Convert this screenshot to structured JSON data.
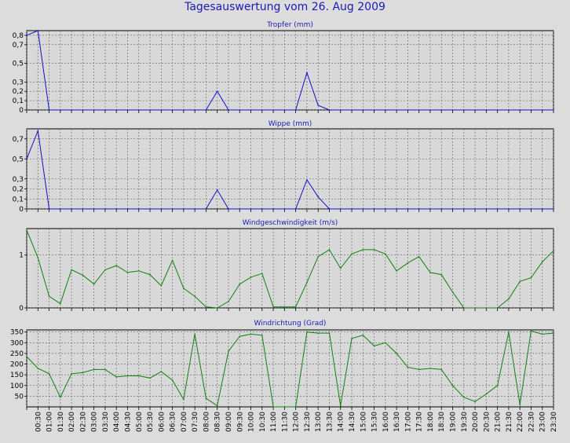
{
  "page": {
    "title": "Tagesauswertung vom 26. Aug 2009"
  },
  "colors": {
    "background": "#dcdcdc",
    "plot_area": "#d8d8d8",
    "grid": "#606060",
    "title_text": "#1a1ab4",
    "rain_series": "#1010cc",
    "wind_series": "#108010"
  },
  "x_ticks": [
    "00:30",
    "01:00",
    "01:30",
    "02:00",
    "02:30",
    "03:00",
    "03:30",
    "04:00",
    "04:30",
    "05:00",
    "05:30",
    "06:00",
    "06:30",
    "07:00",
    "07:30",
    "08:00",
    "08:30",
    "09:00",
    "09:30",
    "10:00",
    "10:30",
    "11:00",
    "11:30",
    "12:00",
    "12:30",
    "13:00",
    "13:30",
    "14:00",
    "14:30",
    "15:00",
    "15:30",
    "16:00",
    "16:30",
    "17:00",
    "17:30",
    "18:00",
    "18:30",
    "19:00",
    "19:30",
    "20:00",
    "20:30",
    "21:00",
    "21:30",
    "22:00",
    "22:30",
    "23:00",
    "23:30"
  ],
  "chart_data": [
    {
      "type": "line",
      "title": "Tropfer (mm)",
      "color": "#1010cc",
      "ylim": [
        0,
        0.85
      ],
      "yticks": [
        0,
        0.1,
        0.2,
        0.3,
        0.5,
        0.7,
        0.8
      ],
      "ytick_labels": [
        "0",
        "0,1",
        "0,2",
        "0,3",
        "0,5",
        "0,7",
        "0,8"
      ],
      "x": [
        "00:00",
        "00:30",
        "01:00",
        "01:30",
        "02:00",
        "02:30",
        "03:00",
        "03:30",
        "04:00",
        "04:30",
        "05:00",
        "05:30",
        "06:00",
        "06:30",
        "07:00",
        "07:30",
        "08:00",
        "08:30",
        "09:00",
        "09:30",
        "10:00",
        "10:30",
        "11:00",
        "11:30",
        "12:00",
        "12:30",
        "13:00",
        "13:30",
        "14:00",
        "14:30",
        "15:00",
        "15:30",
        "16:00",
        "16:30",
        "17:00",
        "17:30",
        "18:00",
        "18:30",
        "19:00",
        "19:30",
        "20:00",
        "20:30",
        "21:00",
        "21:30",
        "22:00",
        "22:30",
        "23:00",
        "23:30"
      ],
      "values": [
        0.8,
        0.85,
        0,
        0,
        0,
        0,
        0,
        0,
        0,
        0,
        0,
        0,
        0,
        0,
        0,
        0,
        0,
        0.2,
        0,
        0,
        0,
        0,
        0,
        0,
        0,
        0.4,
        0.05,
        0,
        0,
        0,
        0,
        0,
        0,
        0,
        0,
        0,
        0,
        0,
        0,
        0,
        0,
        0,
        0,
        0,
        0,
        0,
        0,
        0
      ]
    },
    {
      "type": "line",
      "title": "Wippe (mm)",
      "color": "#1010cc",
      "ylim": [
        0,
        0.8
      ],
      "yticks": [
        0,
        0.1,
        0.2,
        0.3,
        0.5,
        0.7
      ],
      "ytick_labels": [
        "0",
        "0,1",
        "0,2",
        "0,3",
        "0,5",
        "0,7"
      ],
      "x": [
        "00:00",
        "00:30",
        "01:00",
        "01:30",
        "02:00",
        "02:30",
        "03:00",
        "03:30",
        "04:00",
        "04:30",
        "05:00",
        "05:30",
        "06:00",
        "06:30",
        "07:00",
        "07:30",
        "08:00",
        "08:30",
        "09:00",
        "09:30",
        "10:00",
        "10:30",
        "11:00",
        "11:30",
        "12:00",
        "12:30",
        "13:00",
        "13:30",
        "14:00",
        "14:30",
        "15:00",
        "15:30",
        "16:00",
        "16:30",
        "17:00",
        "17:30",
        "18:00",
        "18:30",
        "19:00",
        "19:30",
        "20:00",
        "20:30",
        "21:00",
        "21:30",
        "22:00",
        "22:30",
        "23:00",
        "23:30"
      ],
      "values": [
        0.5,
        0.78,
        0,
        0,
        0,
        0,
        0,
        0,
        0,
        0,
        0,
        0,
        0,
        0,
        0,
        0,
        0,
        0.19,
        0,
        0,
        0,
        0,
        0,
        0,
        0,
        0.29,
        0.12,
        0,
        0,
        0,
        0,
        0,
        0,
        0,
        0,
        0,
        0,
        0,
        0,
        0,
        0,
        0,
        0,
        0,
        0,
        0,
        0,
        0
      ]
    },
    {
      "type": "line",
      "title": "Windgeschwindigkeit (m/s)",
      "color": "#108010",
      "ylim": [
        0,
        1.5
      ],
      "yticks": [
        0,
        1
      ],
      "ytick_labels": [
        "0",
        "1"
      ],
      "x": [
        "00:00",
        "00:30",
        "01:00",
        "01:30",
        "02:00",
        "02:30",
        "03:00",
        "03:30",
        "04:00",
        "04:30",
        "05:00",
        "05:30",
        "06:00",
        "06:30",
        "07:00",
        "07:30",
        "08:00",
        "08:30",
        "09:00",
        "09:30",
        "10:00",
        "10:30",
        "11:00",
        "11:30",
        "12:00",
        "12:30",
        "13:00",
        "13:30",
        "14:00",
        "14:30",
        "15:00",
        "15:30",
        "16:00",
        "16:30",
        "17:00",
        "17:30",
        "18:00",
        "18:30",
        "19:00",
        "19:30",
        "20:00",
        "20:30",
        "21:00",
        "21:30",
        "22:00",
        "22:30",
        "23:00",
        "23:30"
      ],
      "values": [
        1.47,
        0.95,
        0.22,
        0.08,
        0.72,
        0.62,
        0.45,
        0.72,
        0.8,
        0.67,
        0.7,
        0.63,
        0.42,
        0.9,
        0.37,
        0.22,
        0.02,
        0,
        0.12,
        0.45,
        0.58,
        0.65,
        0.02,
        0.02,
        0.02,
        0.48,
        0.97,
        1.1,
        0.75,
        1.02,
        1.1,
        1.1,
        1.02,
        0.7,
        0.85,
        0.97,
        0.67,
        0.63,
        0.3,
        0,
        0,
        0,
        0,
        0.17,
        0.5,
        0.57,
        0.87,
        1.08
      ]
    },
    {
      "type": "line",
      "title": "Windrichtung (Grad)",
      "color": "#108010",
      "ylim": [
        0,
        360
      ],
      "yticks": [
        50,
        100,
        150,
        200,
        250,
        300,
        350
      ],
      "ytick_labels": [
        "50",
        "100",
        "150",
        "200",
        "250",
        "300",
        "350"
      ],
      "x": [
        "00:00",
        "00:30",
        "01:00",
        "01:30",
        "02:00",
        "02:30",
        "03:00",
        "03:30",
        "04:00",
        "04:30",
        "05:00",
        "05:30",
        "06:00",
        "06:30",
        "07:00",
        "07:30",
        "08:00",
        "08:30",
        "09:00",
        "09:30",
        "10:00",
        "10:30",
        "11:00",
        "11:30",
        "12:00",
        "12:30",
        "13:00",
        "13:30",
        "14:00",
        "14:30",
        "15:00",
        "15:30",
        "16:00",
        "16:30",
        "17:00",
        "17:30",
        "18:00",
        "18:30",
        "19:00",
        "19:30",
        "20:00",
        "20:30",
        "21:00",
        "21:30",
        "22:00",
        "22:30",
        "23:00",
        "23:30"
      ],
      "values": [
        235,
        180,
        155,
        45,
        155,
        160,
        175,
        175,
        140,
        145,
        145,
        135,
        165,
        125,
        35,
        340,
        40,
        5,
        260,
        330,
        340,
        335,
        0,
        0,
        0,
        350,
        345,
        345,
        5,
        320,
        335,
        285,
        300,
        250,
        185,
        175,
        180,
        175,
        100,
        45,
        25,
        60,
        100,
        350,
        10,
        355,
        340,
        345
      ]
    }
  ]
}
